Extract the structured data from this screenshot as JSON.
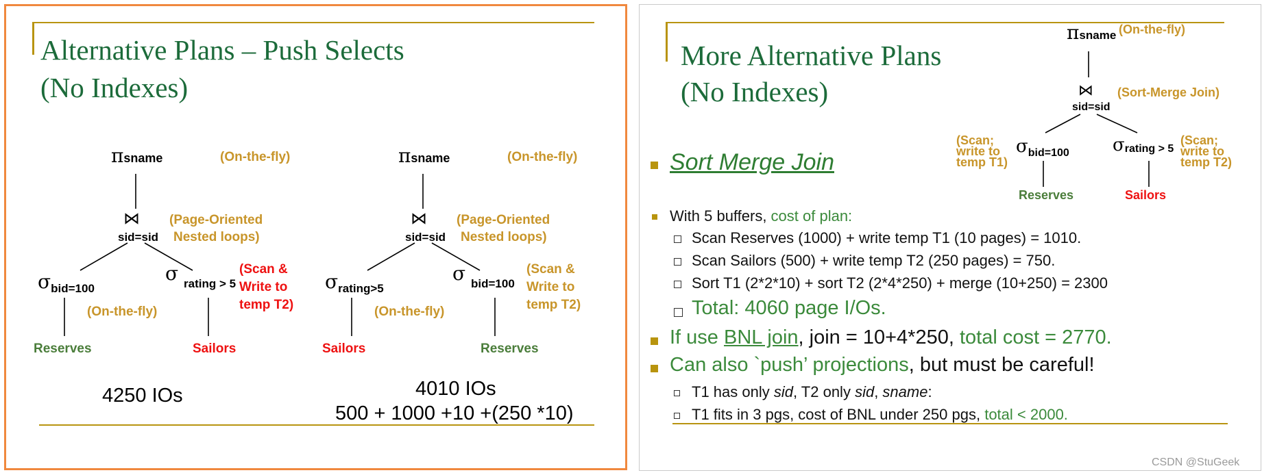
{
  "left_slide": {
    "title_line1": "Alternative Plans – Push Selects",
    "title_line2": "(No Indexes)",
    "plan1": {
      "pi": "π",
      "pi_sub": "sname",
      "pi_note": "(On-the-fly)",
      "join_symbol": "⋈",
      "join_cond": "sid=sid",
      "join_note_1": "(Page-Oriented",
      "join_note_2": "Nested  loops)",
      "left_sigma": "σ",
      "left_sigma_sub": "bid=100",
      "left_note": "(On-the-fly)",
      "right_sigma": "σ",
      "right_sigma_sub": "rating > 5",
      "right_note_1": "(Scan &",
      "right_note_2": "Write to",
      "right_note_3": "temp T2)",
      "left_rel": "Reserves",
      "right_rel": "Sailors",
      "cost": "4250 IOs"
    },
    "plan2": {
      "pi": "π",
      "pi_sub": "sname",
      "pi_note": "(On-the-fly)",
      "join_symbol": "⋈",
      "join_cond": "sid=sid",
      "join_note_1": "(Page-Oriented",
      "join_note_2": "Nested  loops)",
      "left_sigma": "σ",
      "left_sigma_sub": "rating>5",
      "left_note": "(On-the-fly)",
      "right_sigma": "σ",
      "right_sigma_sub": "bid=100",
      "right_note_1": "(Scan &",
      "right_note_2": "Write to",
      "right_note_3": "temp T2)",
      "left_rel": "Sailors",
      "right_rel": "Reserves",
      "cost_1": "4010 IOs",
      "cost_2": "500 + 1000 +10 +(250 *10)"
    }
  },
  "right_slide": {
    "title_line1": "More Alternative Plans",
    "title_line2": "(No Indexes)",
    "tree": {
      "pi": "π",
      "pi_sub": "sname",
      "pi_note": "(On-the-fly)",
      "join_symbol": "⋈",
      "join_cond": "sid=sid",
      "join_note": "(Sort-Merge Join)",
      "left_note_1": "(Scan;",
      "left_note_2": "write to",
      "left_note_3": "temp T1)",
      "left_sigma": "σ",
      "left_sigma_sub": "bid=100",
      "right_sigma": "σ",
      "right_sigma_sub": "rating > 5",
      "right_note_1": "(Scan;",
      "right_note_2": "write to",
      "right_note_3": "temp T2)",
      "left_rel": "Reserves",
      "right_rel": "Sailors"
    },
    "heading": "Sort Merge Join",
    "b1_a": "With 5 buffers, ",
    "b1_b": "cost of plan:",
    "s1": "Scan Reserves (1000) + write temp T1 (10 pages) = 1010.",
    "s2": "Scan Sailors (500) + write temp T2 (250 pages) = 750.",
    "s3": "Sort T1 (2*2*10) + sort T2 (2*4*250) + merge (10+250) = 2300",
    "s4": "Total:  4060 page I/Os.",
    "b2_a": "If use ",
    "b2_b": "BNL join",
    "b2_c": ", join = 10+4*250, ",
    "b2_d": "total cost = 2770.",
    "b3_a": "Can also `push’ projections",
    "b3_b": ", but must be careful!",
    "s5_a": "T1 has only ",
    "s5_b": "sid",
    "s5_c": ", T2 only ",
    "s5_d": "sid",
    "s5_e": ", ",
    "s5_f": "sname",
    "s5_g": ":",
    "s6_a": "T1 fits in 3 pgs, cost of BNL under 250 pgs, ",
    "s6_b": "total < 2000."
  },
  "watermark": "CSDN @StuGeek"
}
